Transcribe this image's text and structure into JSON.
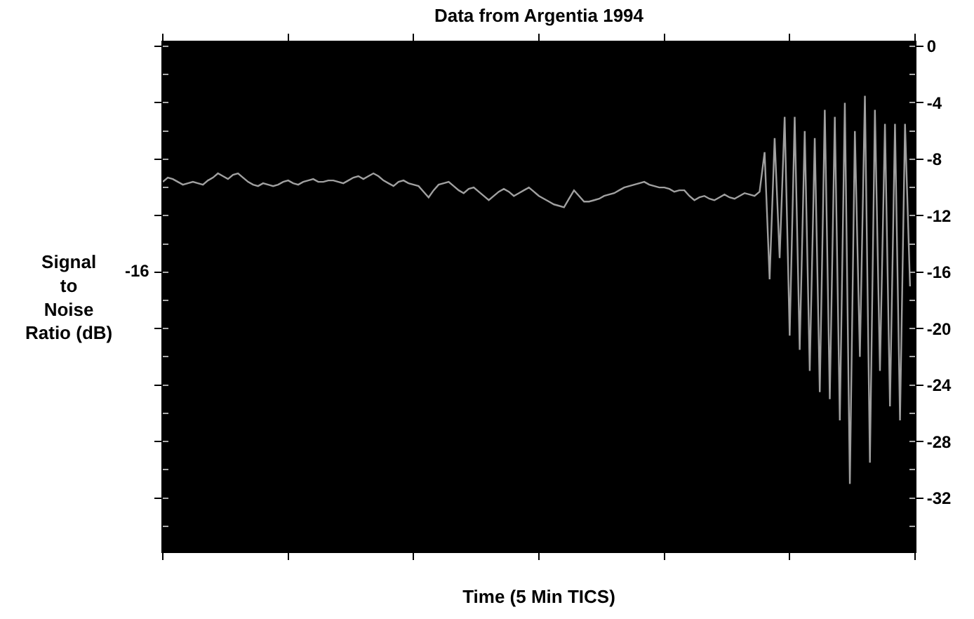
{
  "chart_data": {
    "type": "line",
    "title": "Data from Argentia 1994",
    "xlabel": "Time (5 Min TICS)",
    "ylabel": "Signal\nto\nNoise\nRatio (dB)",
    "categories": [
      null,
      null,
      null,
      null,
      null,
      null,
      null,
      null,
      null,
      null,
      null,
      null,
      null,
      null,
      null,
      null,
      null,
      null,
      null,
      null,
      null,
      null,
      null,
      null,
      null,
      null,
      null,
      null,
      null,
      null,
      null,
      null,
      null,
      null,
      null,
      null,
      null,
      null,
      null,
      null,
      null,
      null,
      null,
      null,
      null,
      null,
      null,
      null,
      null,
      null,
      null,
      null,
      null,
      null,
      null,
      null,
      null,
      null,
      null,
      null,
      null,
      null,
      null,
      null,
      null,
      null,
      null,
      null,
      null,
      null,
      null,
      null,
      null,
      null,
      null,
      null,
      null,
      null,
      null,
      null,
      null,
      null,
      null,
      null,
      null,
      null,
      null,
      null,
      null,
      null,
      null,
      null,
      null,
      null,
      null,
      null,
      null,
      null,
      null,
      null,
      null,
      null,
      null,
      null,
      null,
      null,
      null,
      null,
      null,
      null,
      null,
      null,
      null,
      null,
      null,
      null,
      null,
      null,
      null,
      null,
      null,
      null,
      null,
      null,
      null,
      null,
      null,
      null,
      null,
      null,
      null,
      null,
      null,
      null,
      null,
      null,
      null,
      null,
      null,
      null,
      null,
      null,
      null,
      null,
      null,
      null,
      null,
      null,
      null,
      null
    ],
    "ylim": [
      -35.8,
      0.3
    ],
    "yticks": [
      0,
      -4,
      -8,
      -12,
      -16,
      -20,
      -24,
      -28,
      -32
    ],
    "annotations": [
      "-16"
    ],
    "grid": false,
    "marker": "none",
    "line_style": "solid",
    "series": [
      {
        "color": "#a0a0a0",
        "values": [
          -9.6,
          -9.3,
          -9.4,
          -9.6,
          -9.8,
          -9.7,
          -9.6,
          -9.7,
          -9.8,
          -9.5,
          -9.3,
          -9.0,
          -9.2,
          -9.4,
          -9.1,
          -9.0,
          -9.3,
          -9.6,
          -9.8,
          -9.9,
          -9.7,
          -9.8,
          -9.9,
          -9.8,
          -9.6,
          -9.5,
          -9.7,
          -9.8,
          -9.6,
          -9.5,
          -9.4,
          -9.6,
          -9.6,
          -9.5,
          -9.5,
          -9.6,
          -9.7,
          -9.5,
          -9.3,
          -9.2,
          -9.4,
          -9.2,
          -9.0,
          -9.2,
          -9.5,
          -9.7,
          -9.9,
          -9.6,
          -9.5,
          -9.7,
          -9.8,
          -9.9,
          -10.3,
          -10.7,
          -10.2,
          -9.8,
          -9.7,
          -9.6,
          -9.9,
          -10.2,
          -10.4,
          -10.1,
          -10.0,
          -10.3,
          -10.6,
          -10.9,
          -10.6,
          -10.3,
          -10.1,
          -10.3,
          -10.6,
          -10.4,
          -10.2,
          -10.0,
          -10.3,
          -10.6,
          -10.8,
          -11.0,
          -11.2,
          -11.3,
          -11.4,
          -10.8,
          -10.2,
          -10.6,
          -11.0,
          -11.0,
          -10.9,
          -10.8,
          -10.6,
          -10.5,
          -10.4,
          -10.2,
          -10.0,
          -9.9,
          -9.8,
          -9.7,
          -9.6,
          -9.8,
          -9.9,
          -10.0,
          -10.0,
          -10.1,
          -10.3,
          -10.2,
          -10.2,
          -10.6,
          -10.9,
          -10.7,
          -10.6,
          -10.8,
          -10.9,
          -10.7,
          -10.5,
          -10.7,
          -10.8,
          -10.6,
          -10.4,
          -10.5,
          -10.6,
          -10.3,
          -7.5,
          -16.5,
          -6.5,
          -15.0,
          -5.0,
          -20.5,
          -5.0,
          -21.5,
          -6.0,
          -23.0,
          -6.5,
          -24.5,
          -4.5,
          -25.0,
          -5.0,
          -26.5,
          -4.0,
          -31.0,
          -6.0,
          -22.0,
          -3.5,
          -29.5,
          -4.5,
          -23.0,
          -5.5,
          -25.5,
          -5.5,
          -26.5,
          -5.5,
          -17.0
        ]
      }
    ]
  }
}
